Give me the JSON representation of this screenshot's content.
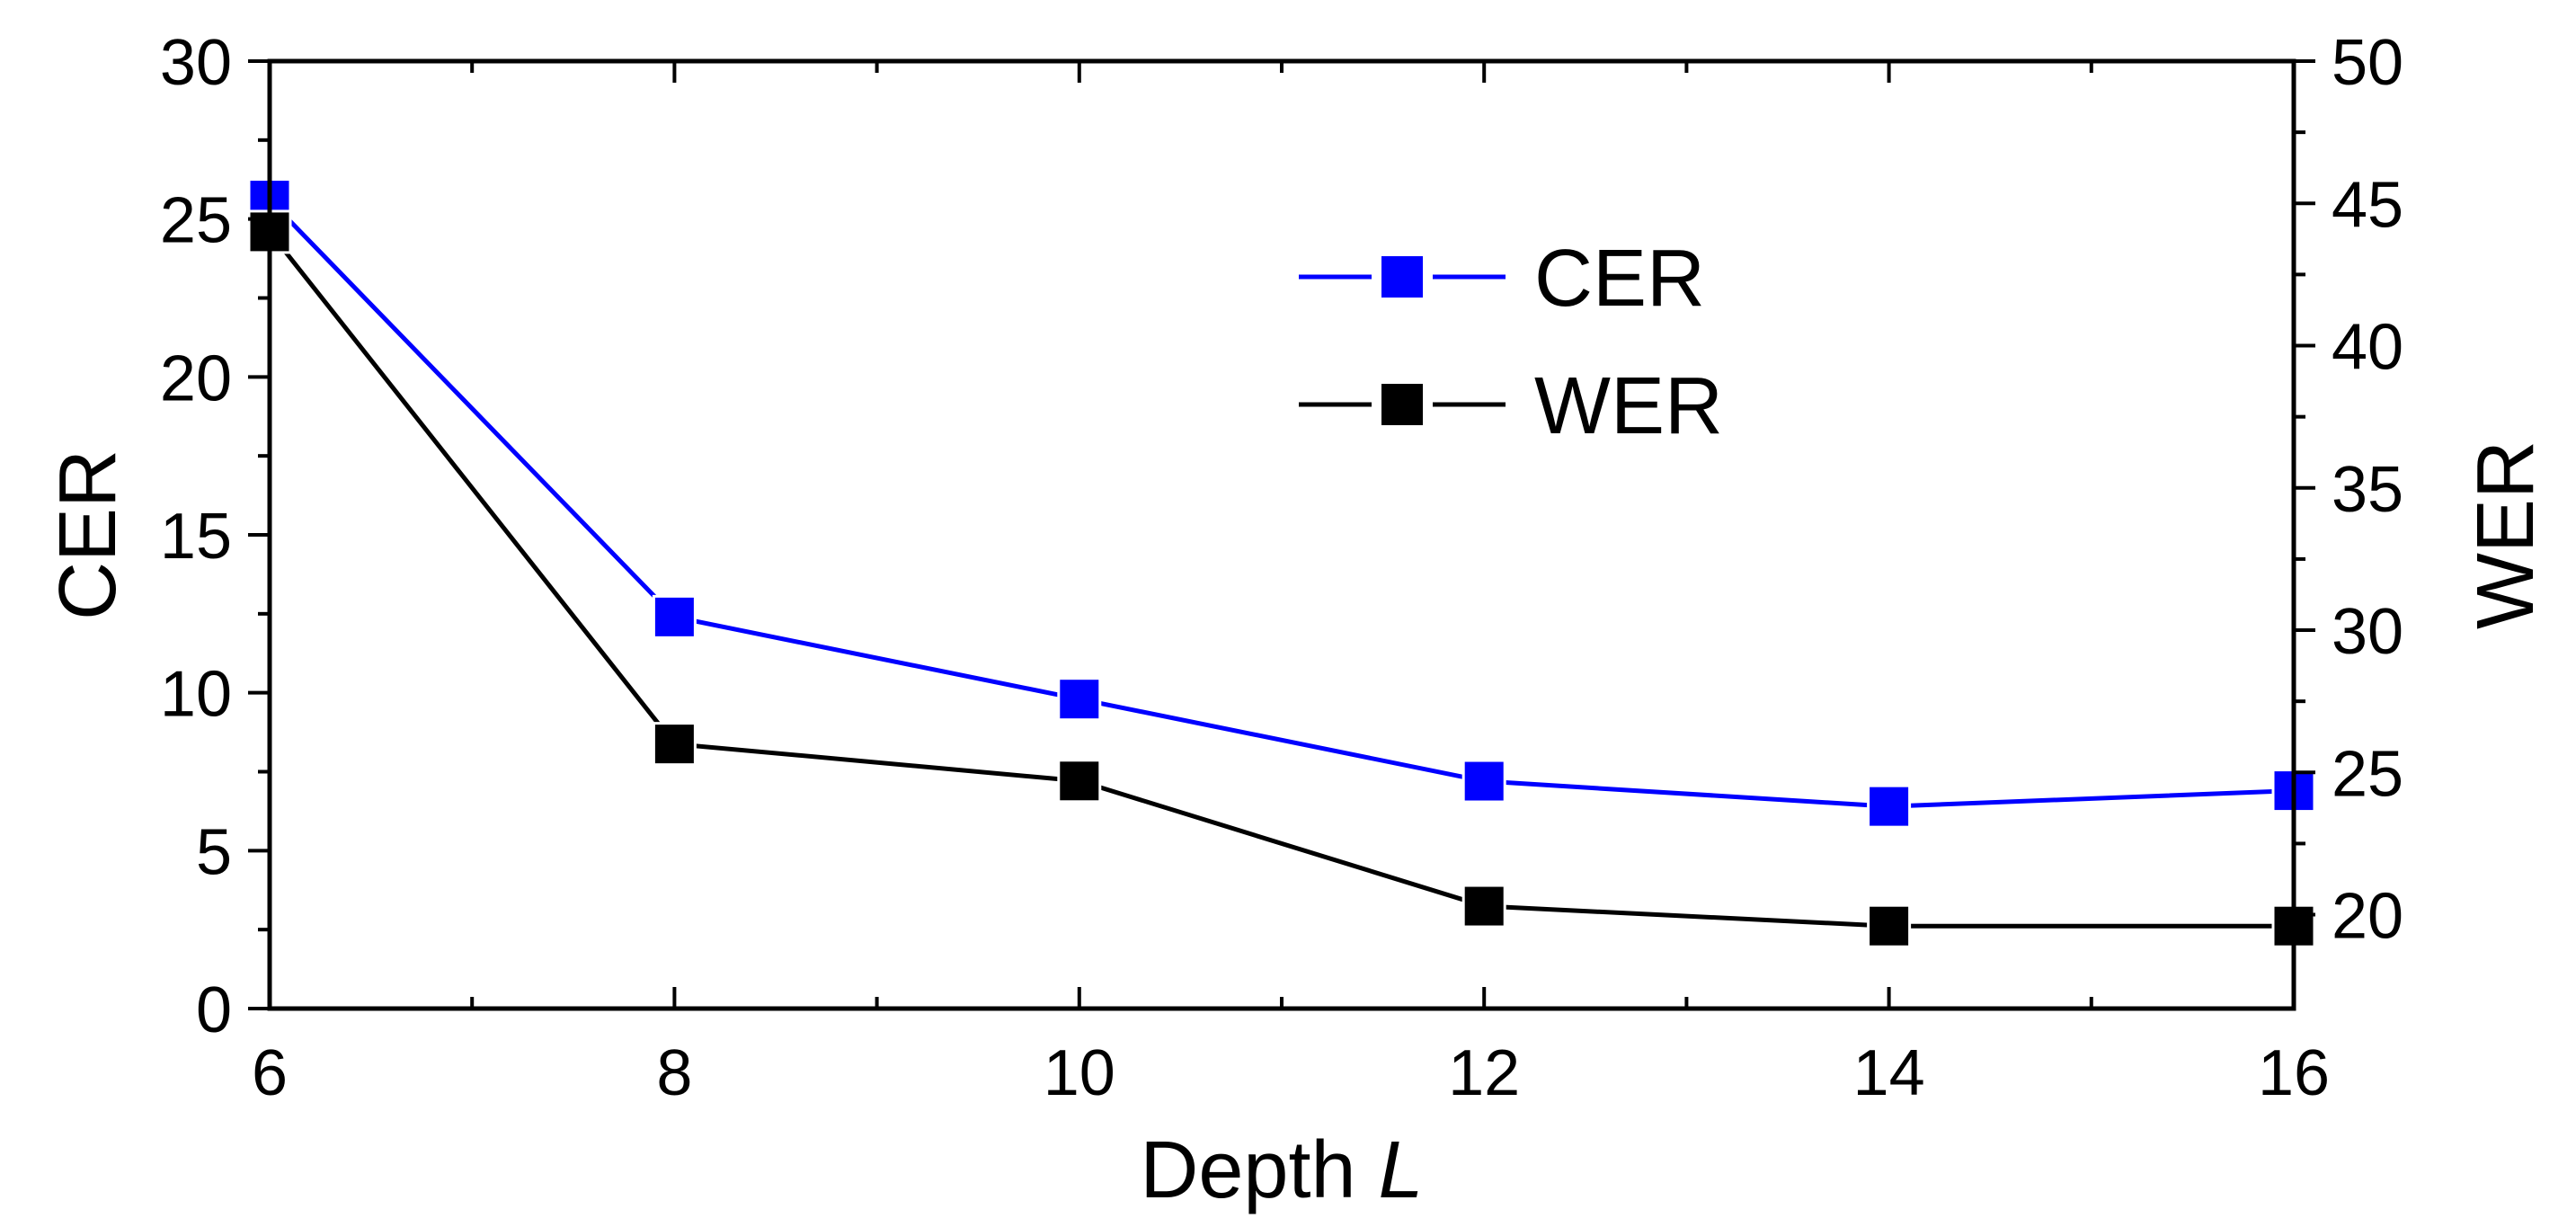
{
  "chart_data": {
    "type": "line",
    "title": "",
    "xlabel": "Depth",
    "xlabel_var": "L",
    "ylabel": "CER",
    "y2label": "WER",
    "x": [
      6,
      8,
      10,
      12,
      14,
      16
    ],
    "xlim": [
      6,
      16
    ],
    "xticks": [
      "6",
      "8",
      "10",
      "12",
      "14",
      "16"
    ],
    "ylim": [
      0,
      30
    ],
    "yticks": [
      "0",
      "5",
      "10",
      "15",
      "20",
      "25",
      "30"
    ],
    "y2lim": [
      16.7,
      50
    ],
    "y2ticks": [
      "20",
      "25",
      "30",
      "35",
      "40",
      "45",
      "50"
    ],
    "grid": false,
    "legend_position": "top-center",
    "series": [
      {
        "name": "CER",
        "axis": "left",
        "color": "#0000ff",
        "values": [
          25.6,
          12.4,
          9.8,
          7.2,
          6.4,
          6.9
        ]
      },
      {
        "name": "WER",
        "axis": "right",
        "color": "#000000",
        "values": [
          44.0,
          26.0,
          24.7,
          20.3,
          19.6,
          19.6
        ]
      }
    ]
  }
}
